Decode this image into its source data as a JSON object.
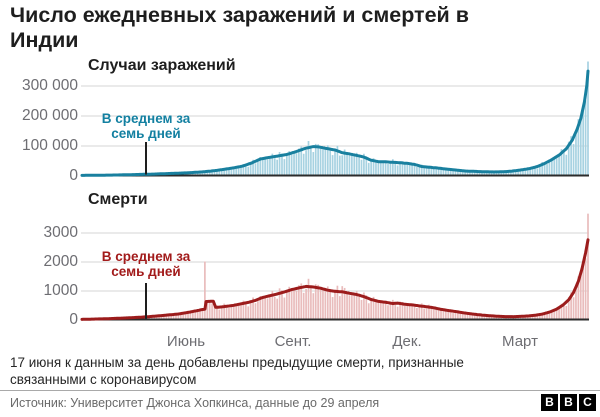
{
  "title": {
    "line1": "Число ежедневных заражений и смертей в",
    "line2": "Индии"
  },
  "charts": {
    "cases": {
      "subtitle": "Случаи заражений",
      "annotation_line1": "В среднем за",
      "annotation_line2": "семь дней",
      "y_ticks": [
        "300 000",
        "200 000",
        "100 000",
        "0"
      ],
      "line_color": "#19809F",
      "bar_color": "#A7D2E1",
      "annotation_color": "#1380A1"
    },
    "deaths": {
      "subtitle": "Смерти",
      "annotation_line1": "В среднем за",
      "annotation_line2": "семь дней",
      "y_ticks": [
        "3000",
        "2000",
        "1000",
        "0"
      ],
      "line_color": "#9C1C1C",
      "bar_color": "#E9BCBC",
      "annotation_color": "#A21B1B"
    }
  },
  "x_axis": {
    "labels": [
      "Июнь",
      "Сент.",
      "Дек.",
      "Март"
    ]
  },
  "footnote": "17 июня к данным за день добавлены предыдущие смерти, признанные связанными с коронавирусом",
  "source": "Источник: Университет Джонса Хопкинса, данные до 29 апреля",
  "logo": {
    "letters": [
      "B",
      "B",
      "C"
    ]
  },
  "chart_data": [
    {
      "type": "area",
      "title": "Случаи заражений",
      "ylim": [
        0,
        300000
      ],
      "yticks": [
        0,
        100000,
        200000,
        300000
      ],
      "x_month_ticks": [
        {
          "label": "Июнь",
          "day": 87
        },
        {
          "label": "Сент.",
          "day": 179
        },
        {
          "label": "Дек.",
          "day": 270
        },
        {
          "label": "Март",
          "day": 360
        }
      ],
      "series": [
        {
          "name": "В среднем за семь дней",
          "points": [
            [
              0,
              400
            ],
            [
              15,
              900
            ],
            [
              30,
              1800
            ],
            [
              45,
              3200
            ],
            [
              60,
              4800
            ],
            [
              75,
              7000
            ],
            [
              87,
              8800
            ],
            [
              100,
              12000
            ],
            [
              110,
              16000
            ],
            [
              117,
              20000
            ],
            [
              125,
              25000
            ],
            [
              133,
              31000
            ],
            [
              141,
              42000
            ],
            [
              148,
              55000
            ],
            [
              155,
              60000
            ],
            [
              162,
              64500
            ],
            [
              170,
              70000
            ],
            [
              178,
              80000
            ],
            [
              185,
              90000
            ],
            [
              192,
              96500
            ],
            [
              197,
              95000
            ],
            [
              203,
              90000
            ],
            [
              210,
              85000
            ],
            [
              216,
              76000
            ],
            [
              222,
              72000
            ],
            [
              228,
              67000
            ],
            [
              234,
              61500
            ],
            [
              240,
              51000
            ],
            [
              246,
              46000
            ],
            [
              252,
              45500
            ],
            [
              258,
              44000
            ],
            [
              264,
              42500
            ],
            [
              270,
              40500
            ],
            [
              276,
              37000
            ],
            [
              282,
              30000
            ],
            [
              288,
              27500
            ],
            [
              294,
              25500
            ],
            [
              300,
              22500
            ],
            [
              306,
              20000
            ],
            [
              312,
              17500
            ],
            [
              318,
              15000
            ],
            [
              324,
              14000
            ],
            [
              330,
              13000
            ],
            [
              336,
              12300
            ],
            [
              342,
              11800
            ],
            [
              348,
              12300
            ],
            [
              354,
              13500
            ],
            [
              360,
              16000
            ],
            [
              366,
              19500
            ],
            [
              372,
              23500
            ],
            [
              378,
              30000
            ],
            [
              384,
              40000
            ],
            [
              390,
              53000
            ],
            [
              396,
              68000
            ],
            [
              402,
              89000
            ],
            [
              407,
              118000
            ],
            [
              411,
              155000
            ],
            [
              414,
              190000
            ],
            [
              417,
              245000
            ],
            [
              419,
              300000
            ],
            [
              420,
              348000
            ]
          ]
        }
      ],
      "daily_bar_specials": {
        "420": 380000
      }
    },
    {
      "type": "area",
      "title": "Смерти",
      "ylim": [
        0,
        3000
      ],
      "yticks": [
        0,
        1000,
        2000,
        3000
      ],
      "x_month_ticks": [
        {
          "label": "Июнь",
          "day": 87
        },
        {
          "label": "Сент.",
          "day": 179
        },
        {
          "label": "Дек.",
          "day": 270
        },
        {
          "label": "Март",
          "day": 360
        }
      ],
      "series": [
        {
          "name": "В среднем за семь дней",
          "points": [
            [
              0,
              5
            ],
            [
              20,
              25
            ],
            [
              40,
              60
            ],
            [
              55,
              95
            ],
            [
              70,
              150
            ],
            [
              80,
              190
            ],
            [
              90,
              260
            ],
            [
              96,
              310
            ],
            [
              100,
              345
            ],
            [
              102,
              355
            ],
            [
              103,
              620
            ],
            [
              109,
              630
            ],
            [
              111,
              420
            ],
            [
              115,
              430
            ],
            [
              120,
              455
            ],
            [
              126,
              490
            ],
            [
              132,
              540
            ],
            [
              138,
              590
            ],
            [
              144,
              660
            ],
            [
              150,
              760
            ],
            [
              156,
              820
            ],
            [
              162,
              880
            ],
            [
              168,
              950
            ],
            [
              174,
              1030
            ],
            [
              180,
              1090
            ],
            [
              186,
              1140
            ],
            [
              192,
              1120
            ],
            [
              198,
              1080
            ],
            [
              204,
              1010
            ],
            [
              210,
              970
            ],
            [
              216,
              955
            ],
            [
              222,
              905
            ],
            [
              228,
              860
            ],
            [
              234,
              790
            ],
            [
              240,
              690
            ],
            [
              246,
              625
            ],
            [
              252,
              595
            ],
            [
              258,
              550
            ],
            [
              262,
              565
            ],
            [
              268,
              525
            ],
            [
              274,
              505
            ],
            [
              280,
              470
            ],
            [
              286,
              440
            ],
            [
              292,
              405
            ],
            [
              298,
              350
            ],
            [
              304,
              310
            ],
            [
              310,
              275
            ],
            [
              316,
              235
            ],
            [
              322,
              200
            ],
            [
              328,
              170
            ],
            [
              334,
              145
            ],
            [
              340,
              125
            ],
            [
              346,
              110
            ],
            [
              352,
              100
            ],
            [
              358,
              98
            ],
            [
              364,
              108
            ],
            [
              370,
              122
            ],
            [
              376,
              145
            ],
            [
              382,
              185
            ],
            [
              388,
              255
            ],
            [
              394,
              360
            ],
            [
              399,
              490
            ],
            [
              404,
              680
            ],
            [
              408,
              930
            ],
            [
              412,
              1320
            ],
            [
              415,
              1750
            ],
            [
              418,
              2300
            ],
            [
              420,
              2750
            ]
          ]
        }
      ],
      "daily_bar_specials": {
        "102": 2000,
        "216": 1150,
        "420": 3650
      }
    }
  ]
}
